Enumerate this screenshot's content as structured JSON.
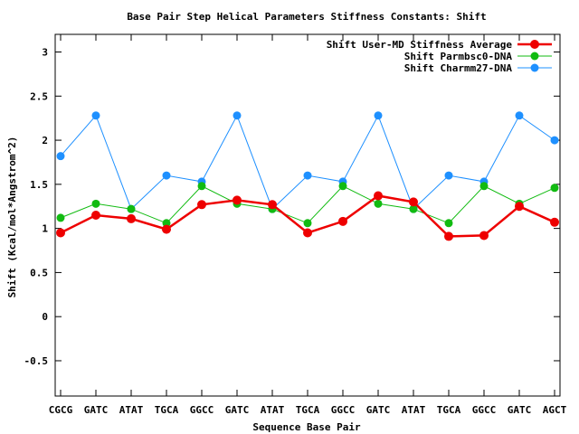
{
  "chart_data": {
    "type": "line",
    "title": "Base Pair Step Helical Parameters Stiffness Constants: Shift",
    "xlabel": "Sequence Base Pair",
    "ylabel": "Shift (Kcal/mol*Angstrom^2)",
    "categories": [
      "CGCG",
      "GATC",
      "ATAT",
      "TGCA",
      "GGCC",
      "GATC",
      "ATAT",
      "TGCA",
      "GGCC",
      "GATC",
      "ATAT",
      "TGCA",
      "GGCC",
      "GATC",
      "AGCT"
    ],
    "ylim": [
      -0.9,
      3.2
    ],
    "yticks": [
      -0.5,
      0,
      0.5,
      1,
      1.5,
      2,
      2.5,
      3
    ],
    "ytick_labels": [
      "-0.5",
      "0",
      "0.5",
      "1",
      "1.5",
      "2",
      "2.5",
      "3"
    ],
    "legend_position": "top-right",
    "series": [
      {
        "name": "Shift User-MD Stiffness Average",
        "color": "#ee0000",
        "values": [
          0.95,
          1.15,
          1.11,
          0.99,
          1.27,
          1.32,
          1.27,
          0.95,
          1.08,
          1.37,
          1.3,
          0.91,
          0.92,
          1.25,
          1.07
        ]
      },
      {
        "name": "Shift Parmbsc0-DNA",
        "color": "#11bb11",
        "values": [
          1.12,
          1.28,
          1.22,
          1.06,
          1.48,
          1.28,
          1.22,
          1.06,
          1.48,
          1.28,
          1.22,
          1.06,
          1.48,
          1.28,
          1.46
        ]
      },
      {
        "name": "Shift Charmm27-DNA",
        "color": "#1e90ff",
        "values": [
          1.82,
          2.28,
          1.22,
          1.6,
          1.53,
          2.28,
          1.22,
          1.6,
          1.53,
          2.28,
          1.22,
          1.6,
          1.53,
          2.28,
          2.0
        ]
      }
    ]
  }
}
